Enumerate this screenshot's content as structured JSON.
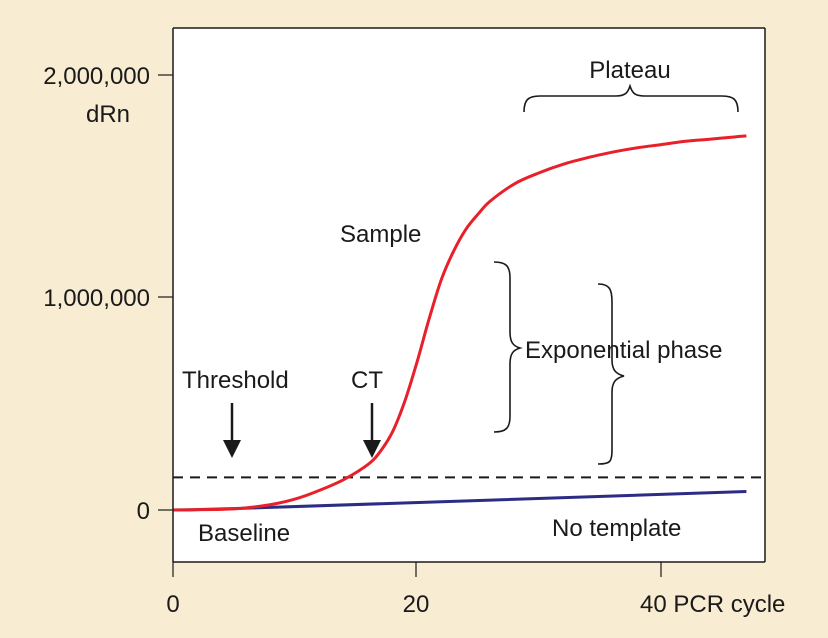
{
  "chart_data": {
    "type": "line",
    "title": "",
    "xlabel": "PCR cycle",
    "ylabel": "dRn",
    "xlim": [
      0,
      48
    ],
    "ylim": [
      -230000,
      2300000
    ],
    "x_ticks": [
      {
        "value": 0,
        "label": "0"
      },
      {
        "value": 20,
        "label": "20"
      },
      {
        "value": 40,
        "label": "40"
      }
    ],
    "y_ticks": [
      {
        "value": 0,
        "label": "0"
      },
      {
        "value": 1000000,
        "label": "1,000,000"
      },
      {
        "value": 2000000,
        "label": "2,000,000"
      }
    ],
    "grid": false,
    "threshold": 150000,
    "colors": {
      "sample": "#e8202a",
      "no_template": "#2c2c86",
      "threshold": "#1a1a1a",
      "plot_bg": "#ffffff",
      "page_bg": "#f8ecd2"
    },
    "series": [
      {
        "name": "Sample",
        "x": [
          0,
          5,
          8,
          10,
          12,
          14,
          16,
          17,
          18,
          19,
          20,
          21,
          22,
          23,
          24,
          25,
          26,
          28,
          30,
          32,
          34,
          36,
          38,
          40,
          42,
          44,
          46,
          47
        ],
        "values": [
          0,
          5000,
          25000,
          50000,
          90000,
          140000,
          210000,
          270000,
          360000,
          500000,
          680000,
          880000,
          1060000,
          1190000,
          1290000,
          1360000,
          1420000,
          1500000,
          1550000,
          1590000,
          1620000,
          1645000,
          1665000,
          1680000,
          1695000,
          1705000,
          1715000,
          1720000
        ]
      },
      {
        "name": "No template",
        "x": [
          0,
          7,
          47
        ],
        "values": [
          0,
          10000,
          85000
        ]
      }
    ],
    "annotations": {
      "ylabel_text": "dRn",
      "x_last_label": "40 PCR cycle",
      "sample": "Sample",
      "plateau": "Plateau",
      "exponential_phase": "Exponential phase",
      "threshold": "Threshold",
      "ct": "CT",
      "baseline": "Baseline",
      "no_template": "No template"
    }
  }
}
